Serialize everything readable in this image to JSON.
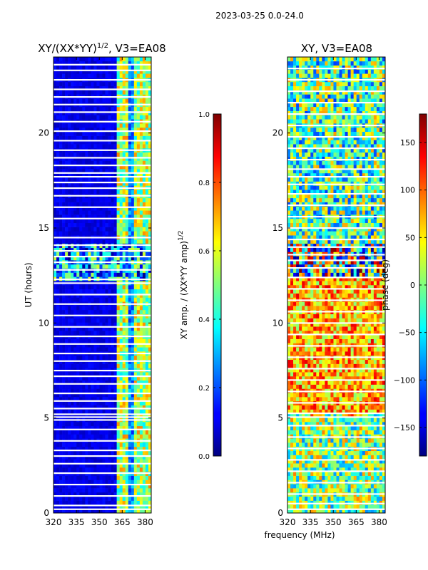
{
  "suptitle": "2023-03-25 0.0-24.0",
  "shared_xlabel": "frequency (MHz)",
  "chart_data": [
    {
      "type": "heatmap",
      "title_main": "XY/(XX*YY)",
      "title_sup": "1/2",
      "title_rest": ", V3=EA08",
      "xlabel": "",
      "ylabel": "UT (hours)",
      "xlim": [
        320,
        384
      ],
      "ylim": [
        0,
        24
      ],
      "x_ticks": [
        320,
        335,
        350,
        365,
        380
      ],
      "y_ticks": [
        0,
        5,
        10,
        15,
        20
      ],
      "colorbar": {
        "label_main": "XY amp. / (XX*YY amp)",
        "label_sup": "1/2",
        "range": [
          0.0,
          1.0
        ],
        "ticks": [
          "0.0",
          "0.2",
          "0.4",
          "0.6",
          "0.8",
          "1.0"
        ],
        "tick_values": [
          0.0,
          0.2,
          0.4,
          0.6,
          0.8,
          1.0
        ],
        "colormap": "jet"
      },
      "gap_hours": [
        0.2,
        0.4,
        0.9,
        1.5,
        2.1,
        2.6,
        3.0,
        3.3,
        3.8,
        4.4,
        4.9,
        5.05,
        5.2,
        5.5,
        5.9,
        6.3,
        6.8,
        7.2,
        7.5,
        8.0,
        8.4,
        8.9,
        9.3,
        9.8,
        10.4,
        11.0,
        11.5,
        12.1,
        12.3,
        12.8,
        13.2,
        13.5,
        13.8,
        14.1,
        14.5,
        15.5,
        16.1,
        16.7,
        17.1,
        17.4,
        17.7,
        17.9,
        18.3,
        18.7,
        19.1,
        19.6,
        20.1,
        20.6,
        21.1,
        21.5,
        21.9,
        22.3,
        22.8,
        23.3,
        23.6
      ]
    },
    {
      "type": "heatmap",
      "title_main": "XY, V3=EA08",
      "xlabel": "frequency (MHz)",
      "ylabel": "",
      "xlim": [
        320,
        384
      ],
      "ylim": [
        0,
        24
      ],
      "x_ticks": [
        320,
        335,
        350,
        365,
        380
      ],
      "y_ticks": [
        0,
        5,
        10,
        15,
        20
      ],
      "colorbar": {
        "label_main": "phase (deg)",
        "range": [
          -180,
          180
        ],
        "ticks": [
          "−150",
          "−100",
          "−50",
          "0",
          "50",
          "100",
          "150"
        ],
        "tick_values": [
          -150,
          -100,
          -50,
          0,
          50,
          100,
          150
        ],
        "colormap": "jet"
      },
      "gap_hours": [
        0.2,
        0.5,
        1.0,
        1.6,
        2.2,
        2.8,
        3.4,
        4.0,
        4.6,
        5.05,
        5.25,
        5.8,
        6.4,
        7.0,
        7.6,
        8.2,
        8.8,
        9.4,
        10.0,
        10.6,
        11.2,
        11.8,
        12.4,
        12.9,
        13.3,
        13.6,
        14.0,
        14.4,
        15.0,
        15.6,
        16.2,
        16.8,
        17.3,
        17.7,
        18.1,
        18.6,
        19.2,
        19.8,
        20.4,
        21.0,
        21.6,
        22.2,
        22.8,
        23.4
      ]
    }
  ]
}
